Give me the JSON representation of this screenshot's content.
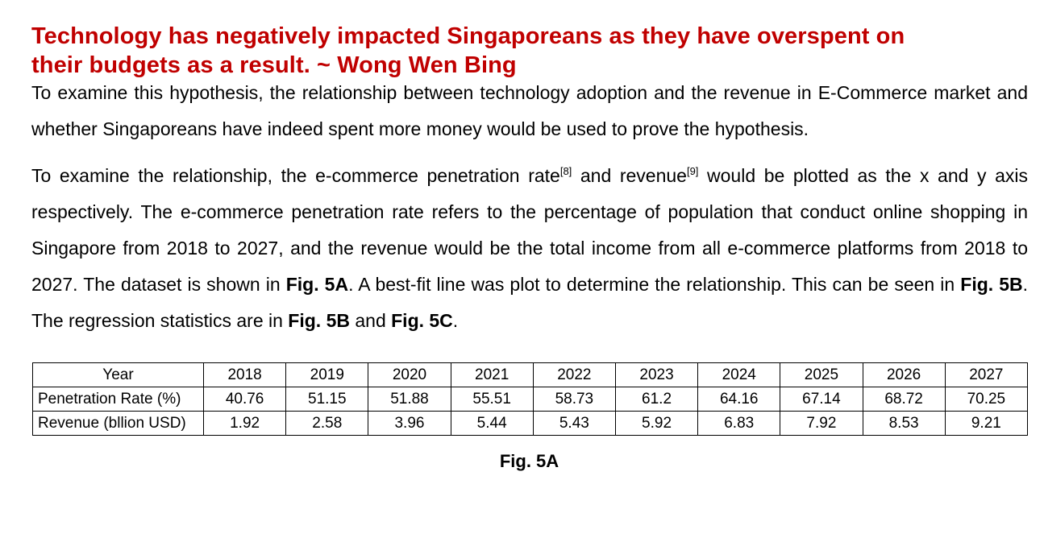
{
  "headline": {
    "line1": "Technology has negatively impacted Singaporeans as they have overspent on",
    "line2": "their budgets as a result.  ~ Wong Wen Bing"
  },
  "paragraph1": "To examine this hypothesis, the relationship between technology adoption and the revenue in E-Commerce market and whether Singaporeans have indeed spent more money would be used to prove the hypothesis.",
  "paragraph2": {
    "part1": "To examine the relationship, the e-commerce penetration rate",
    "ref1": "[8]",
    "part2": " and revenue",
    "ref2": "[9]",
    "part3": " would be plotted as the x and y axis respectively. The e-commerce penetration rate refers to the percentage of population that conduct online shopping in Singapore from 2018 to 2027, and the revenue would be the total income from all e-commerce platforms from 2018 to 2027. The dataset is shown in ",
    "fig1": "Fig. 5A",
    "part4": ". A best-fit line was plot to determine the relationship. This can be seen in ",
    "fig2": "Fig. 5B",
    "part5": ". The regression statistics are in ",
    "fig3": "Fig. 5B",
    "part6": " and ",
    "fig4": "Fig. 5C",
    "part7": "."
  },
  "table": {
    "header_label": "Year",
    "years": [
      "2018",
      "2019",
      "2020",
      "2021",
      "2022",
      "2023",
      "2024",
      "2025",
      "2026",
      "2027"
    ],
    "row1_label": "Penetration Rate (%)",
    "penetration_rate": [
      "40.76",
      "51.15",
      "51.88",
      "55.51",
      "58.73",
      "61.2",
      "64.16",
      "67.14",
      "68.72",
      "70.25"
    ],
    "row2_label": "Revenue (bllion USD)",
    "revenue": [
      "1.92",
      "2.58",
      "3.96",
      "5.44",
      "5.43",
      "5.92",
      "6.83",
      "7.92",
      "8.53",
      "9.21"
    ]
  },
  "caption": "Fig. 5A"
}
